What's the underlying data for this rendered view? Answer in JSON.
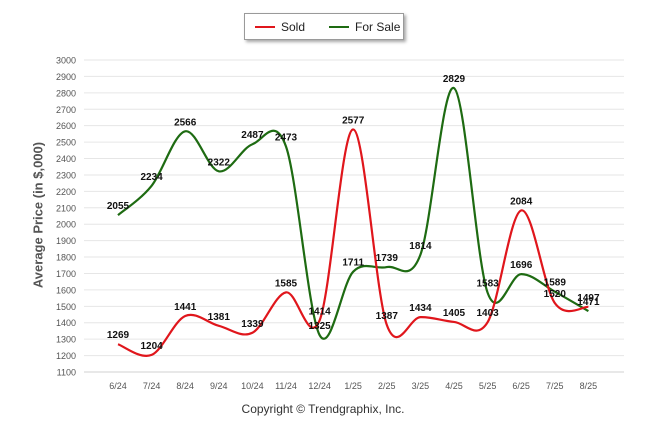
{
  "legend": {
    "sold": "Sold",
    "for_sale": "For Sale"
  },
  "copyright": "Copyright © Trendgraphix, Inc.",
  "colors": {
    "sold": "#e0161c",
    "for_sale": "#1e6b12",
    "grid": "#e6e6e6",
    "axis_text": "#555555"
  },
  "chart_data": {
    "type": "line",
    "title": "",
    "xlabel": "",
    "ylabel": "Average Price (in $,000)",
    "ylim": [
      1100,
      3000
    ],
    "yticks": [
      1100,
      1200,
      1300,
      1400,
      1500,
      1600,
      1700,
      1800,
      1900,
      2000,
      2100,
      2200,
      2300,
      2400,
      2500,
      2600,
      2700,
      2800,
      2900,
      3000
    ],
    "grid": true,
    "legend_position": "top-center",
    "categories": [
      "6/24",
      "7/24",
      "8/24",
      "9/24",
      "10/24",
      "11/24",
      "12/24",
      "1/25",
      "2/25",
      "3/25",
      "4/25",
      "5/25",
      "6/25",
      "7/25",
      "8/25"
    ],
    "series": [
      {
        "name": "Sold",
        "color": "#e0161c",
        "values": [
          1269,
          1204,
          1441,
          1381,
          1339,
          1585,
          1414,
          2577,
          1387,
          1434,
          1405,
          1403,
          2084,
          1520,
          1497
        ]
      },
      {
        "name": "For Sale",
        "color": "#1e6b12",
        "values": [
          2055,
          2234,
          2566,
          2322,
          2487,
          2473,
          1325,
          1711,
          1739,
          1814,
          2829,
          1583,
          1696,
          1589,
          1471
        ]
      }
    ]
  }
}
